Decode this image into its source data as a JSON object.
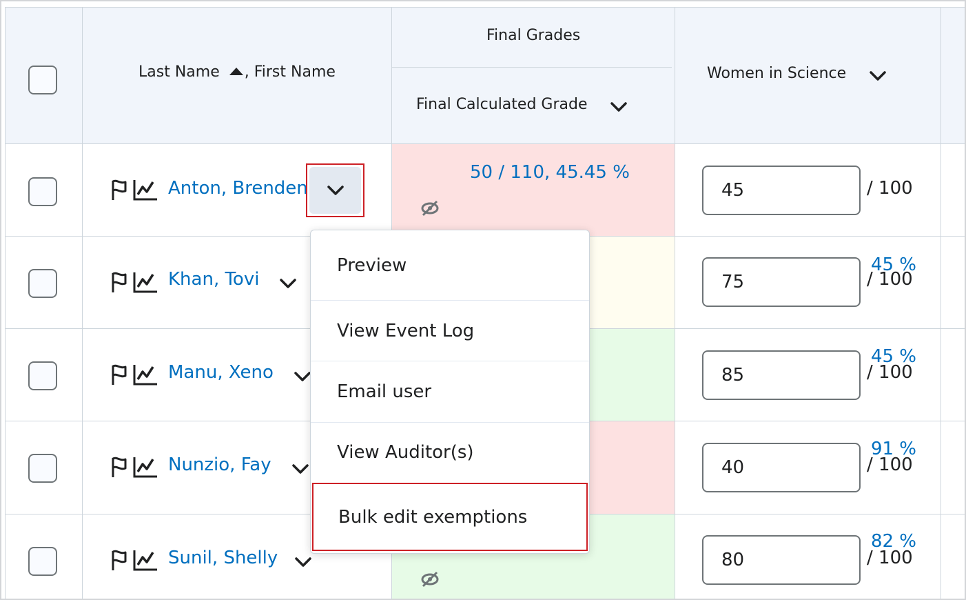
{
  "header": {
    "name_col_last": "Last Name",
    "name_col_first": ", First Name",
    "final_grades_group": "Final Grades",
    "final_calc_grade": "Final Calculated Grade",
    "women_in_science": "Women in Science"
  },
  "rows": [
    {
      "name": "Anton, Brenden",
      "grade": "50 / 110, 45.45 %",
      "grade_visible": "50 / 110, 45.45 %",
      "score": "45",
      "max": "/ 100",
      "grade_color": "#fde1e1"
    },
    {
      "name": "Khan, Tovi",
      "grade_visible": "45 %",
      "score": "75",
      "max": "/ 100",
      "grade_color": "#fffdf0"
    },
    {
      "name": "Manu, Xeno",
      "grade_visible": "45 %",
      "score": "85",
      "max": "/ 100",
      "grade_color": "#e7fbe7"
    },
    {
      "name": "Nunzio, Fay",
      "grade_visible": "91 %",
      "score": "40",
      "max": "/ 100",
      "grade_color": "#fde1e1"
    },
    {
      "name": "Sunil, Shelly",
      "grade_visible": "82 %",
      "score": "80",
      "max": "/ 100",
      "grade_color": "#e7fbe7"
    }
  ],
  "menu": {
    "items": [
      "Preview",
      "View Event Log",
      "Email user",
      "View Auditor(s)",
      "Bulk edit exemptions"
    ]
  },
  "colors": {
    "link": "#006fbf",
    "highlight_border": "#cd2026"
  }
}
